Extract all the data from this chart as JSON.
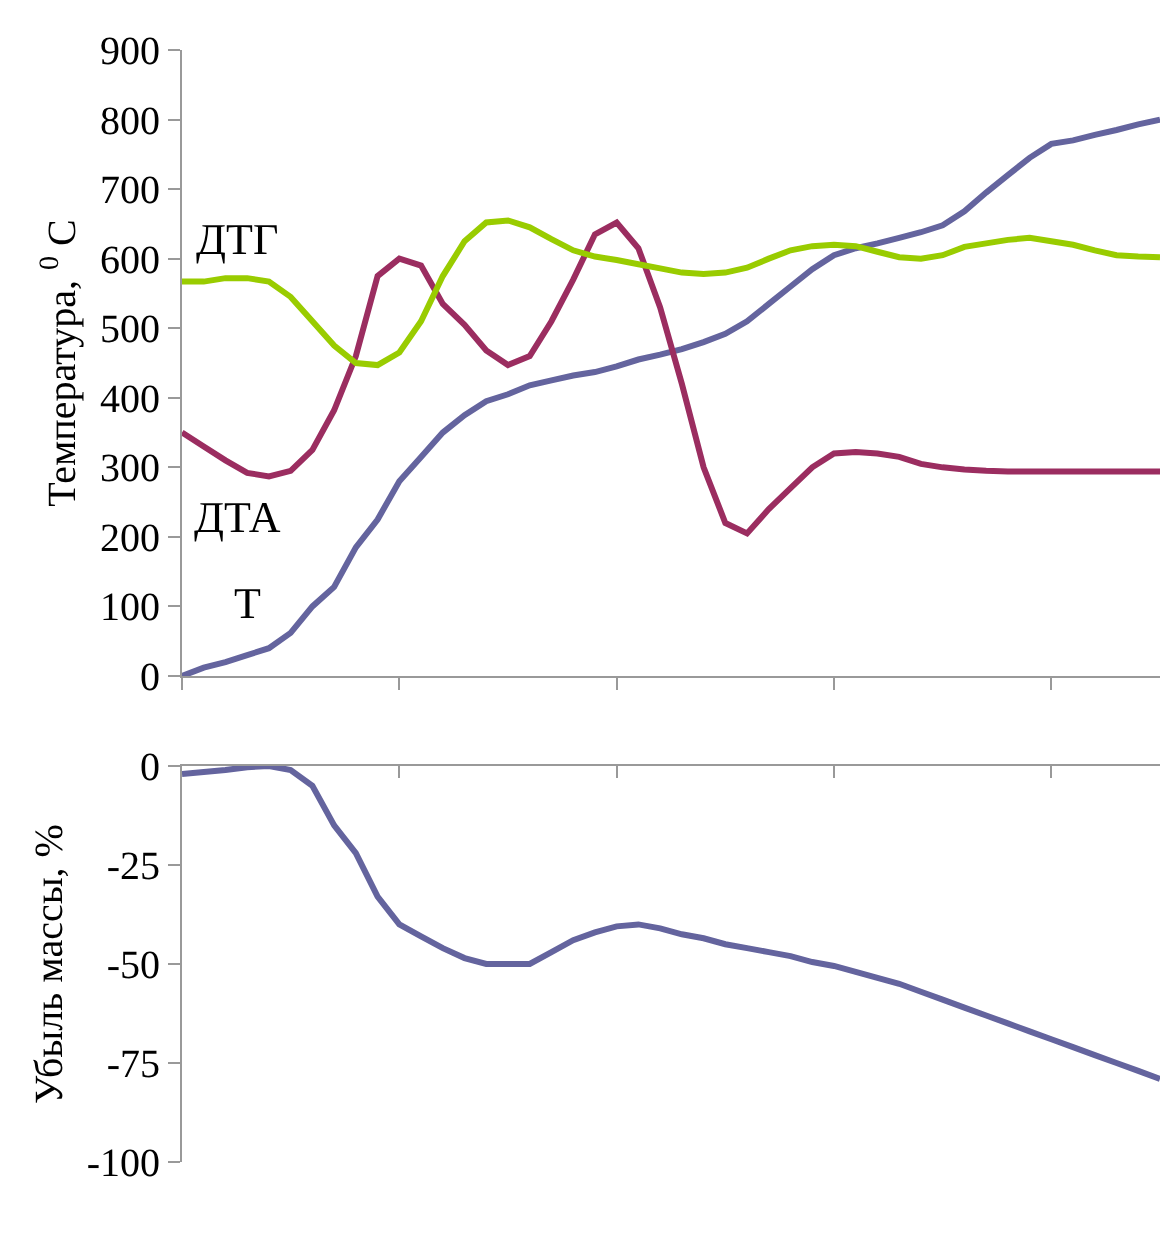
{
  "chart_data": [
    {
      "type": "line",
      "categories": [
        null,
        null,
        null,
        null,
        null,
        null,
        null,
        null,
        null,
        null,
        null,
        null,
        null,
        null,
        null,
        null,
        null,
        null,
        null,
        null,
        null,
        null,
        null,
        null,
        null,
        null,
        null,
        null,
        null,
        null,
        null,
        null,
        null,
        null,
        null,
        null,
        null,
        null,
        null,
        null,
        null,
        null,
        null,
        null,
        null,
        null
      ],
      "ylabel": "Температура, $^{0}$ С",
      "ylim": [
        0,
        900
      ],
      "yticks": [
        0,
        100,
        200,
        300,
        400,
        500,
        600,
        700,
        800,
        900
      ],
      "tick_labels": "y",
      "grid": false,
      "legend": false,
      "series": [
        {
          "name": "Т",
          "color": "#64649e",
          "values": [
            0,
            12,
            20,
            30,
            40,
            62,
            100,
            128,
            185,
            225,
            280,
            315,
            350,
            375,
            395,
            405,
            418,
            425,
            432,
            437,
            445,
            455,
            462,
            470,
            480,
            492,
            510,
            535,
            560,
            585,
            605,
            615,
            622,
            630,
            638,
            648,
            668,
            695,
            720,
            745,
            765,
            770,
            778,
            785,
            793,
            800
          ]
        },
        {
          "name": "ДТА",
          "color": "#9b2d60",
          "values": [
            350,
            330,
            310,
            292,
            287,
            295,
            325,
            382,
            460,
            575,
            600,
            590,
            535,
            505,
            468,
            447,
            460,
            510,
            570,
            635,
            652,
            615,
            530,
            420,
            300,
            220,
            205,
            240,
            270,
            300,
            320,
            322,
            320,
            315,
            305,
            300,
            297,
            295,
            294,
            294,
            294,
            294,
            294,
            294,
            294,
            294
          ]
        },
        {
          "name": "ДТГ",
          "color": "#99cc00",
          "values": [
            567,
            567,
            572,
            572,
            567,
            545,
            510,
            475,
            450,
            447,
            465,
            510,
            575,
            625,
            652,
            655,
            645,
            628,
            612,
            603,
            598,
            592,
            586,
            580,
            578,
            580,
            587,
            600,
            612,
            618,
            620,
            618,
            610,
            602,
            600,
            605,
            617,
            622,
            627,
            630,
            625,
            620,
            612,
            605,
            603,
            602
          ]
        }
      ]
    },
    {
      "type": "line",
      "categories": [
        null,
        null,
        null,
        null,
        null,
        null,
        null,
        null,
        null,
        null,
        null,
        null,
        null,
        null,
        null,
        null,
        null,
        null,
        null,
        null,
        null,
        null,
        null,
        null,
        null,
        null,
        null,
        null,
        null,
        null,
        null,
        null,
        null,
        null,
        null,
        null,
        null,
        null,
        null,
        null,
        null,
        null,
        null,
        null,
        null,
        null
      ],
      "ylabel": "Убыль массы, %",
      "ylim": [
        -100,
        0
      ],
      "yticks": [
        -100,
        -75,
        -50,
        -25,
        0
      ],
      "tick_labels": "y",
      "grid": false,
      "legend": false,
      "series": [
        {
          "color": "#64649e",
          "values": [
            -2,
            -1.5,
            -1,
            -0.3,
            0,
            -1,
            -5,
            -15,
            -22,
            -33,
            -40,
            -43,
            -46,
            -48.5,
            -50,
            -50,
            -50,
            -47,
            -44,
            -42,
            -40.5,
            -40,
            -41,
            -42.5,
            -43.5,
            -45,
            -46,
            -47,
            -48,
            -49.5,
            -50.5,
            -52,
            -53.5,
            -55,
            -57,
            -59,
            -61,
            -63,
            -65,
            -67,
            -69,
            -71,
            -73,
            -75,
            -77,
            -79
          ]
        }
      ]
    }
  ]
}
